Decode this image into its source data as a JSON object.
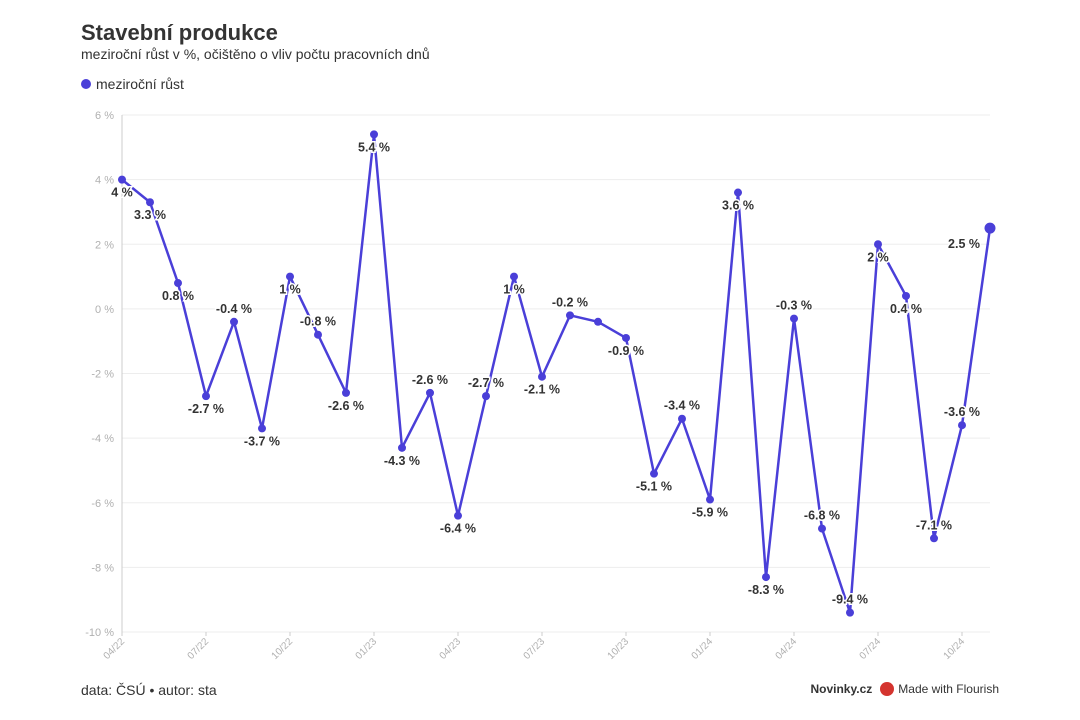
{
  "title": "Stavební produkce",
  "subtitle": "meziroční růst v %, očištěno o vliv počtu pracovních dnů",
  "footer": {
    "source": "data: ČSÚ • autor: sta",
    "brand": "Novinky.cz",
    "credit": "Made with Flourish"
  },
  "colors": {
    "series": "#4a3fd8",
    "grid": "#ededed",
    "axis_text": "#b0b0b0",
    "label": "#333333",
    "flourish": "#d4342f"
  },
  "chart_data": {
    "type": "line",
    "title": "Stavební produkce",
    "subtitle": "meziroční růst v %, očištěno o vliv počtu pracovních dnů",
    "xlabel": "",
    "ylabel": "",
    "ylim": [
      -10,
      6
    ],
    "yticks": [
      6,
      4,
      2,
      0,
      -2,
      -4,
      -6,
      -8,
      -10
    ],
    "ytick_labels": [
      "6 %",
      "4 %",
      "2 %",
      "0 %",
      "-2 %",
      "-4 %",
      "-6 %",
      "-8 %",
      "-10 %"
    ],
    "xticks": [
      "04/22",
      "07/22",
      "10/22",
      "01/23",
      "04/23",
      "07/23",
      "10/23",
      "01/24",
      "04/24",
      "07/24",
      "10/24"
    ],
    "grid": true,
    "legend": "top-left",
    "x": [
      "04/22",
      "05/22",
      "06/22",
      "07/22",
      "08/22",
      "09/22",
      "10/22",
      "11/22",
      "12/22",
      "01/23",
      "02/23",
      "03/23",
      "04/23",
      "05/23",
      "06/23",
      "07/23",
      "08/23",
      "09/23",
      "10/23",
      "11/23",
      "12/23",
      "01/24",
      "02/24",
      "03/24",
      "04/24",
      "05/24",
      "06/24",
      "07/24",
      "08/24",
      "09/24",
      "10/24",
      "11/24"
    ],
    "series": [
      {
        "name": "meziroční růst",
        "values": [
          4,
          3.3,
          0.8,
          -2.7,
          -0.4,
          -3.7,
          1,
          -0.8,
          -2.6,
          5.4,
          -4.3,
          -2.6,
          -6.4,
          -2.7,
          1,
          -2.1,
          -0.2,
          -0.4,
          -0.9,
          -5.1,
          -3.4,
          -5.9,
          3.6,
          -8.3,
          -0.3,
          -6.8,
          -9.4,
          2,
          0.4,
          -7.1,
          -3.6,
          2.5
        ],
        "labels": [
          "4 %",
          "3.3 %",
          "0.8 %",
          "-2.7 %",
          "-0.4 %",
          "-3.7 %",
          "1 %",
          "-0.8 %",
          "-2.6 %",
          "5.4 %",
          "-4.3 %",
          "-2.6 %",
          "-6.4 %",
          "-2.7 %",
          "1 %",
          "-2.1 %",
          "-0.2 %",
          "",
          "-0.9 %",
          "-5.1 %",
          "-3.4 %",
          "-5.9 %",
          "3.6 %",
          "-8.3 %",
          "-0.3 %",
          "-6.8 %",
          "-9.4 %",
          "2 %",
          "0.4 %",
          "-7.1 %",
          "-3.6 %",
          "2.5 %"
        ],
        "label_pos": [
          "below",
          "below",
          "below",
          "below",
          "above",
          "below",
          "below",
          "above",
          "below",
          "below",
          "below",
          "above",
          "below",
          "above",
          "below",
          "below",
          "above",
          "none",
          "below",
          "below",
          "above",
          "below",
          "below",
          "below",
          "above",
          "above",
          "above",
          "below",
          "below",
          "above",
          "above",
          "left"
        ]
      }
    ]
  }
}
